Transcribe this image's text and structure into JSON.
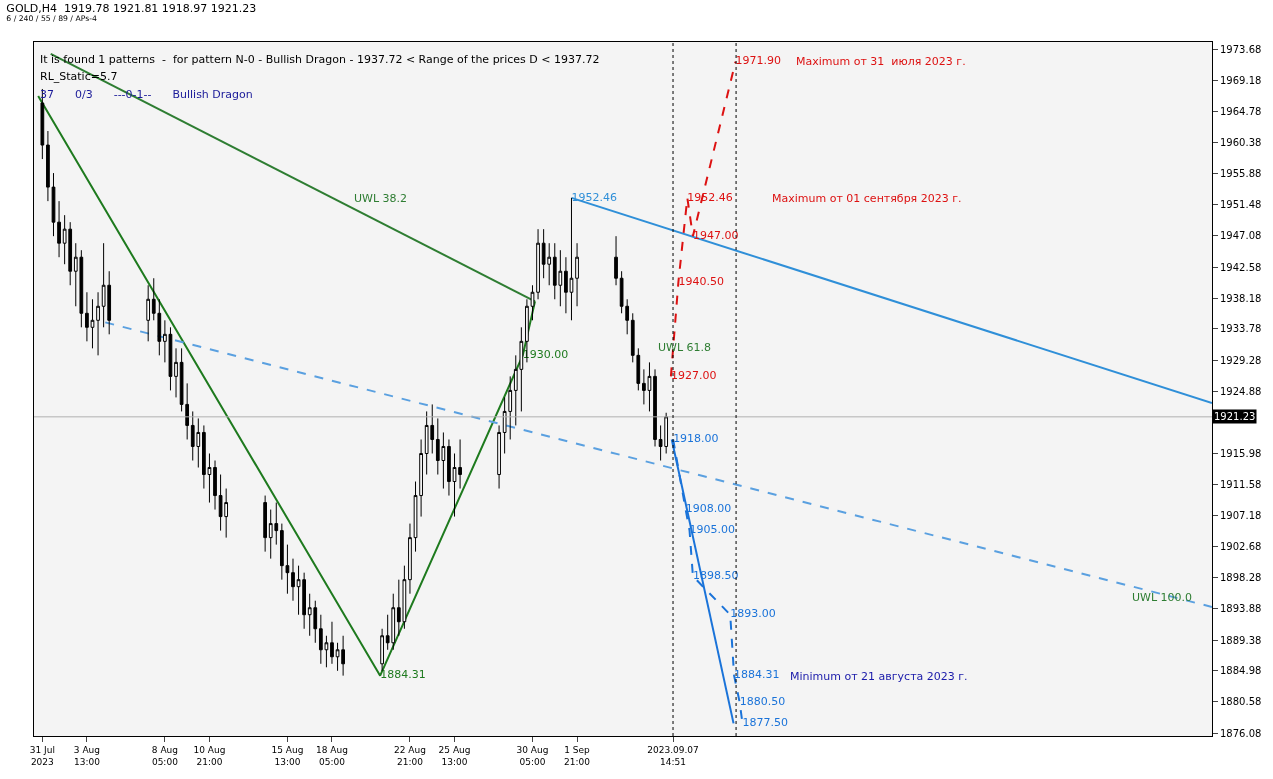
{
  "chart_data": {
    "type": "candlestick",
    "title": "GOLD,H4  1919.78 1921.81 1918.97 1921.23",
    "subtitle": "6 / 240 / 55 / 89 / APs-4",
    "annotations": [
      "It is found 1 patterns  -  for pattern N-0 - Bullish Dragon - 1937.72 < Range of the prices D < 1937.72",
      "RL_Static=5.7",
      "37      0/3      ---0-1--      Bullish Dragon",
      "Maximum от 31  июля 2023 г.",
      "Maximum от 01 сентября 2023 г.",
      "Minimum от 21 августа 2023 г.",
      "UWL 38.2",
      "UWL 61.8",
      "UWL 100.0"
    ],
    "x": [
      "2023-07-31T21:00",
      "2023-08-01T05:00",
      "2023-08-01T13:00",
      "2023-08-01T21:00",
      "2023-08-02T05:00",
      "2023-08-02T13:00",
      "2023-08-02T21:00",
      "2023-08-03T05:00",
      "2023-08-03T13:00",
      "2023-08-03T21:00",
      "2023-08-04T05:00",
      "2023-08-04T13:00",
      "2023-08-04T21:00",
      "2023-08-07T05:00",
      "2023-08-07T13:00",
      "2023-08-07T21:00",
      "2023-08-08T05:00",
      "2023-08-08T13:00",
      "2023-08-08T21:00",
      "2023-08-09T05:00",
      "2023-08-09T13:00",
      "2023-08-09T21:00",
      "2023-08-10T05:00",
      "2023-08-10T13:00",
      "2023-08-10T21:00",
      "2023-08-11T05:00",
      "2023-08-11T13:00",
      "2023-08-11T21:00",
      "2023-08-14T05:00",
      "2023-08-14T13:00",
      "2023-08-14T21:00",
      "2023-08-15T05:00",
      "2023-08-15T13:00",
      "2023-08-15T21:00",
      "2023-08-16T05:00",
      "2023-08-16T13:00",
      "2023-08-16T21:00",
      "2023-08-17T05:00",
      "2023-08-17T13:00",
      "2023-08-17T21:00",
      "2023-08-18T05:00",
      "2023-08-18T13:00",
      "2023-08-18T21:00",
      "2023-08-21T05:00",
      "2023-08-21T13:00",
      "2023-08-21T21:00",
      "2023-08-22T05:00",
      "2023-08-22T13:00",
      "2023-08-22T21:00",
      "2023-08-23T05:00",
      "2023-08-23T13:00",
      "2023-08-23T21:00",
      "2023-08-24T05:00",
      "2023-08-24T13:00",
      "2023-08-24T21:00",
      "2023-08-25T05:00",
      "2023-08-25T13:00",
      "2023-08-25T21:00",
      "2023-08-28T05:00",
      "2023-08-28T13:00",
      "2023-08-28T21:00",
      "2023-08-29T05:00",
      "2023-08-29T13:00",
      "2023-08-29T21:00",
      "2023-08-30T05:00",
      "2023-08-30T13:00",
      "2023-08-30T21:00",
      "2023-08-31T05:00",
      "2023-08-31T13:00",
      "2023-08-31T21:00",
      "2023-09-01T05:00",
      "2023-09-01T13:00",
      "2023-09-01T21:00",
      "2023-09-04T05:00",
      "2023-09-04T13:00",
      "2023-09-04T21:00",
      "2023-09-05T05:00",
      "2023-09-05T13:00",
      "2023-09-05T21:00",
      "2023-09-06T05:00",
      "2023-09-06T13:00",
      "2023-09-06T21:00",
      "2023-09-07T05:00"
    ],
    "ohlc": [
      [
        1966,
        1968,
        1958,
        1960
      ],
      [
        1960,
        1962,
        1952,
        1954
      ],
      [
        1954,
        1956,
        1947,
        1949
      ],
      [
        1949,
        1952,
        1944,
        1946
      ],
      [
        1946,
        1950,
        1943,
        1948
      ],
      [
        1948,
        1949,
        1940,
        1942
      ],
      [
        1942,
        1946,
        1937,
        1944
      ],
      [
        1944,
        1945,
        1934,
        1936
      ],
      [
        1936,
        1939,
        1932,
        1934
      ],
      [
        1934,
        1938,
        1931,
        1935
      ],
      [
        1935,
        1939,
        1930,
        1937
      ],
      [
        1937,
        1946,
        1934,
        1940
      ],
      [
        1940,
        1942,
        1933,
        1935
      ],
      [
        1935,
        1940,
        1932,
        1938
      ],
      [
        1938,
        1941,
        1935,
        1936
      ],
      [
        1936,
        1938,
        1930,
        1932
      ],
      [
        1932,
        1935,
        1929,
        1933
      ],
      [
        1933,
        1934,
        1925,
        1927
      ],
      [
        1927,
        1931,
        1924,
        1929
      ],
      [
        1929,
        1931,
        1922,
        1923
      ],
      [
        1923,
        1926,
        1918,
        1920
      ],
      [
        1920,
        1922,
        1915,
        1917
      ],
      [
        1917,
        1921,
        1914,
        1919
      ],
      [
        1919,
        1920,
        1911,
        1913
      ],
      [
        1913,
        1916,
        1909,
        1914
      ],
      [
        1914,
        1915,
        1908,
        1910
      ],
      [
        1910,
        1913,
        1905,
        1907
      ],
      [
        1907,
        1911,
        1904,
        1909
      ],
      [
        1909,
        1910,
        1902,
        1904
      ],
      [
        1904,
        1908,
        1901,
        1906
      ],
      [
        1906,
        1909,
        1903,
        1905
      ],
      [
        1905,
        1906,
        1898,
        1900
      ],
      [
        1900,
        1903,
        1896,
        1899
      ],
      [
        1899,
        1901,
        1895,
        1897
      ],
      [
        1897,
        1900,
        1893,
        1898
      ],
      [
        1898,
        1899,
        1891,
        1893
      ],
      [
        1893,
        1896,
        1890,
        1894
      ],
      [
        1894,
        1895,
        1889,
        1891
      ],
      [
        1891,
        1893,
        1886,
        1888
      ],
      [
        1888,
        1890,
        1885.5,
        1889
      ],
      [
        1889,
        1892,
        1886,
        1887
      ],
      [
        1887,
        1889,
        1885,
        1888
      ],
      [
        1888,
        1890,
        1884.31,
        1886
      ],
      [
        1886,
        1891,
        1885,
        1890
      ],
      [
        1890,
        1893,
        1888,
        1889
      ],
      [
        1889,
        1896,
        1888,
        1894
      ],
      [
        1894,
        1898,
        1890,
        1892
      ],
      [
        1892,
        1900,
        1891,
        1898
      ],
      [
        1898,
        1906,
        1896,
        1904
      ],
      [
        1904,
        1912,
        1902,
        1910
      ],
      [
        1910,
        1918,
        1907,
        1916
      ],
      [
        1916,
        1922,
        1913,
        1920
      ],
      [
        1920,
        1923,
        1916,
        1918
      ],
      [
        1918,
        1921,
        1913,
        1915
      ],
      [
        1915,
        1919,
        1911,
        1917
      ],
      [
        1917,
        1918,
        1910,
        1912
      ],
      [
        1912,
        1916,
        1907,
        1914
      ],
      [
        1914,
        1918,
        1911,
        1913
      ],
      [
        1913,
        1920,
        1911,
        1919
      ],
      [
        1919,
        1924,
        1916,
        1922
      ],
      [
        1922,
        1927,
        1918,
        1925
      ],
      [
        1925,
        1930,
        1920,
        1928
      ],
      [
        1928,
        1934,
        1922,
        1932
      ],
      [
        1932,
        1938,
        1929,
        1937
      ],
      [
        1937,
        1940,
        1935,
        1939
      ],
      [
        1939,
        1948,
        1938,
        1946
      ],
      [
        1946,
        1948,
        1941,
        1943
      ],
      [
        1943,
        1946,
        1940,
        1944
      ],
      [
        1944,
        1946,
        1938,
        1940
      ],
      [
        1940,
        1945,
        1937,
        1942
      ],
      [
        1942,
        1944,
        1936,
        1939
      ],
      [
        1939,
        1952.46,
        1935,
        1941
      ],
      [
        1941,
        1946,
        1937,
        1944
      ],
      [
        1944,
        1947,
        1940,
        1941
      ],
      [
        1941,
        1942,
        1936,
        1937
      ],
      [
        1937,
        1938,
        1933,
        1935
      ],
      [
        1935,
        1936,
        1929,
        1930
      ],
      [
        1930,
        1931,
        1925,
        1926
      ],
      [
        1926,
        1928,
        1923,
        1925
      ],
      [
        1925,
        1929,
        1922,
        1927
      ],
      [
        1927,
        1928,
        1917,
        1918
      ],
      [
        1918,
        1920,
        1915,
        1917
      ],
      [
        1917,
        1921.81,
        1916,
        1921.23
      ]
    ],
    "series": [
      {
        "type": "line",
        "color": "#1e7a1e",
        "line_style": "solid",
        "x": [
          "2023-07-31T15:00",
          "2023-08-21T02:12",
          "2023-08-29T15:00",
          "2023-08-30T08:36"
        ],
        "values": [
          1967,
          1884.31,
          1930,
          1937.7
        ],
        "value_labels": [
          null,
          "1884.31",
          "1930.00",
          null
        ]
      },
      {
        "type": "line",
        "color": "#2e7d32",
        "line_style": "solid",
        "x": [
          "2023-08-01T09:00",
          "2023-08-30T08:36"
        ],
        "values": [
          1973,
          1937.7
        ]
      },
      {
        "type": "line",
        "color": "#2f8fd8",
        "line_style": "solid",
        "x": [
          "2023-09-01T13:00",
          "2023-10-09T21:00"
        ],
        "values": [
          1952.46,
          1923.2
        ],
        "value_labels": [
          "1952.46",
          null
        ]
      },
      {
        "type": "line",
        "color": "#5aa0e0",
        "line_style": "dashed",
        "x": [
          "2023-08-04T15:24",
          "2023-10-09T21:00"
        ],
        "values": [
          1934.7,
          1894.1
        ]
      },
      {
        "type": "line",
        "color": "#dd1111",
        "line_style": "dashed",
        "x": [
          "2023-09-07T11:48",
          "2023-09-07T22:36",
          "2023-09-08T11:24",
          "2023-09-08T19:24",
          "2023-09-11T08:36"
        ],
        "values": [
          1927,
          1940.5,
          1952.46,
          1947,
          1971.9
        ],
        "value_labels": [
          "1927.00",
          "1940.50",
          "1952.46",
          "1947.00",
          "1971.90"
        ]
      },
      {
        "type": "line",
        "color": "#1a73d9",
        "line_style": "solid",
        "x": [
          "2023-09-07T13:00",
          "2023-09-11T05:48"
        ],
        "values": [
          1918,
          1877.5
        ]
      },
      {
        "type": "line",
        "color": "#1a73d9",
        "line_style": "dashed",
        "x": [
          "2023-09-07T15:00",
          "2023-09-08T09:00",
          "2023-09-08T14:36",
          "2023-09-08T19:24",
          "2023-09-11T01:00",
          "2023-09-11T06:36",
          "2023-09-11T14:36",
          "2023-09-11T18:36"
        ],
        "values": [
          1918,
          1908,
          1905,
          1898.5,
          1893,
          1884.31,
          1880.5,
          1877.5
        ],
        "value_labels": [
          "1918.00",
          "1908.00",
          "1905.00",
          "1898.50",
          "1893.00",
          "1884.31",
          "1880.50",
          "1877.50"
        ]
      }
    ],
    "ref_lines": [
      {
        "axis": "y",
        "value": 1921.23,
        "label": "1921.23",
        "color": "#b0b0b0",
        "line_style": "solid"
      },
      {
        "axis": "x",
        "value": "2023-09-07T14:51",
        "color": "#000000",
        "line_style": "dotted"
      },
      {
        "axis": "x",
        "value": "2023-09-11T09:24",
        "color": "#000000",
        "line_style": "dotted"
      }
    ],
    "xlim": [
      "2023-07-31T09:00",
      "2023-10-09T21:00"
    ],
    "xticks": [
      {
        "value": "2023-07-31T21:00",
        "label": "31 Jul 2023"
      },
      {
        "value": "2023-08-03T13:00",
        "label": "3 Aug 13:00"
      },
      {
        "value": "2023-08-08T05:00",
        "label": "8 Aug 05:00"
      },
      {
        "value": "2023-08-10T21:00",
        "label": "10 Aug 21:00"
      },
      {
        "value": "2023-08-15T13:00",
        "label": "15 Aug 13:00"
      },
      {
        "value": "2023-08-18T05:00",
        "label": "18 Aug 05:00"
      },
      {
        "value": "2023-08-22T21:00",
        "label": "22 Aug 21:00"
      },
      {
        "value": "2023-08-25T13:00",
        "label": "25 Aug 13:00"
      },
      {
        "value": "2023-08-30T05:00",
        "label": "30 Aug 05:00"
      },
      {
        "value": "2023-09-01T21:00",
        "label": "1 Sep 21:00"
      },
      {
        "value": "2023-09-07T14:51",
        "label": "2023.09.07 14:51"
      }
    ],
    "ylim": [
      1875.7,
      1974.7
    ],
    "yticks": [
      1876.08,
      1880.58,
      1884.98,
      1889.38,
      1893.88,
      1898.28,
      1902.68,
      1907.18,
      1911.58,
      1915.98,
      1924.88,
      1929.28,
      1933.78,
      1938.18,
      1942.58,
      1947.08,
      1951.48,
      1955.88,
      1960.38,
      1964.78,
      1969.18,
      1973.68
    ],
    "grid": false
  }
}
